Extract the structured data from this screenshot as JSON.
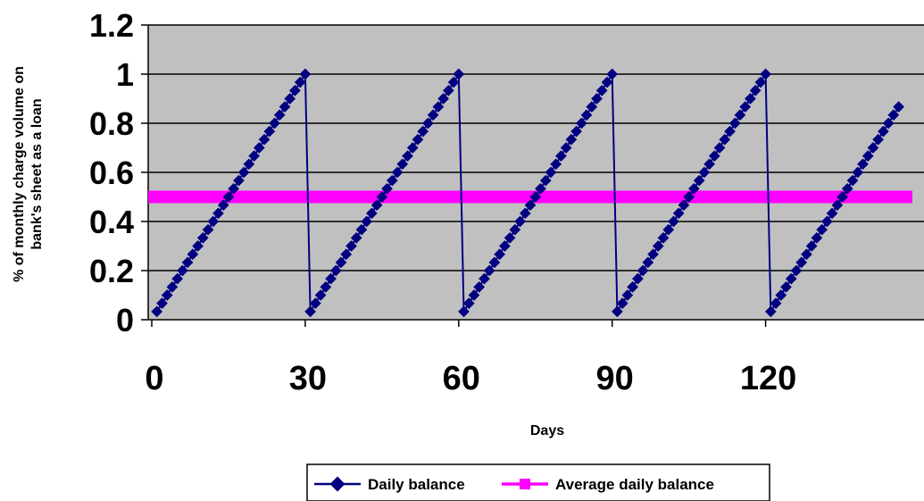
{
  "chart_data": {
    "type": "line",
    "xlabel": "Days",
    "ylabel_lines": [
      "% of monthly charge volume on",
      "bank's sheet as a loan"
    ],
    "x_ticks": [
      0,
      30,
      60,
      90,
      120
    ],
    "y_ticks": [
      "0",
      "0.2",
      "0.4",
      "0.6",
      "0.8",
      "1",
      "1.2"
    ],
    "xlim": [
      0,
      150
    ],
    "ylim": [
      0,
      1.2
    ],
    "grid": true,
    "plot_background": "#C0C0C0",
    "legend_position": "bottom",
    "series": [
      {
        "name": "Daily balance",
        "color": "#000080",
        "marker": "diamond",
        "cycle_length_days": 30,
        "points_per_cycle": 30,
        "cycles": [
          {
            "start_day": 1,
            "end_day": 30
          },
          {
            "start_day": 31,
            "end_day": 60
          },
          {
            "start_day": 61,
            "end_day": 90
          },
          {
            "start_day": 91,
            "end_day": 120
          },
          {
            "start_day": 121,
            "end_day": 146
          }
        ]
      },
      {
        "name": "Average daily balance",
        "color": "#FF00FF",
        "marker": "square",
        "value": 0.5
      }
    ]
  }
}
